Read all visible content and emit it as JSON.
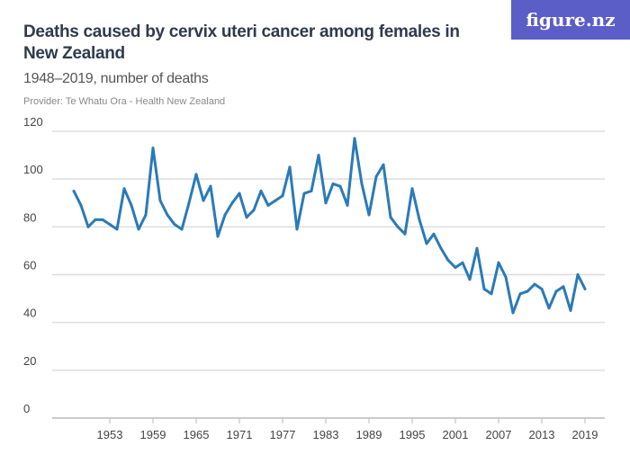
{
  "header": {
    "title": "Deaths caused by cervix uteri cancer among females in New Zealand",
    "subtitle": "1948–2019, number of deaths",
    "provider": "Provider: Te Whatu Ora - Health New Zealand",
    "logo": "figure.nz"
  },
  "chart_data": {
    "type": "line",
    "title": "Deaths caused by cervix uteri cancer among females in New Zealand",
    "subtitle": "1948–2019, number of deaths",
    "xlabel": "",
    "ylabel": "",
    "ylim": [
      0,
      120
    ],
    "xlim": [
      1948,
      2019
    ],
    "grid": true,
    "color": "#2a7ab8",
    "yticks": [
      0,
      20,
      40,
      60,
      80,
      100,
      120
    ],
    "xticks": [
      1953,
      1959,
      1965,
      1971,
      1977,
      1983,
      1989,
      1995,
      2001,
      2007,
      2013,
      2019
    ],
    "x": [
      1948,
      1949,
      1950,
      1951,
      1952,
      1953,
      1954,
      1955,
      1956,
      1957,
      1958,
      1959,
      1960,
      1961,
      1962,
      1963,
      1964,
      1965,
      1966,
      1967,
      1968,
      1969,
      1970,
      1971,
      1972,
      1973,
      1974,
      1975,
      1976,
      1977,
      1978,
      1979,
      1980,
      1981,
      1982,
      1983,
      1984,
      1985,
      1986,
      1987,
      1988,
      1989,
      1990,
      1991,
      1992,
      1993,
      1994,
      1995,
      1996,
      1997,
      1998,
      1999,
      2000,
      2001,
      2002,
      2003,
      2004,
      2005,
      2006,
      2007,
      2008,
      2009,
      2010,
      2011,
      2012,
      2013,
      2014,
      2015,
      2016,
      2017,
      2018,
      2019
    ],
    "y": [
      95,
      89,
      80,
      83,
      83,
      81,
      79,
      96,
      89,
      79,
      85,
      113,
      91,
      85,
      81,
      79,
      90,
      102,
      91,
      97,
      76,
      85,
      90,
      94,
      84,
      87,
      95,
      89,
      91,
      93,
      105,
      79,
      94,
      95,
      110,
      90,
      98,
      97,
      89,
      117,
      98,
      85,
      101,
      106,
      84,
      80,
      77,
      96,
      83,
      73,
      77,
      71,
      66,
      63,
      65,
      58,
      71,
      54,
      52,
      65,
      59,
      44,
      52,
      53,
      56,
      54,
      46,
      53,
      55,
      45,
      60,
      54
    ]
  }
}
